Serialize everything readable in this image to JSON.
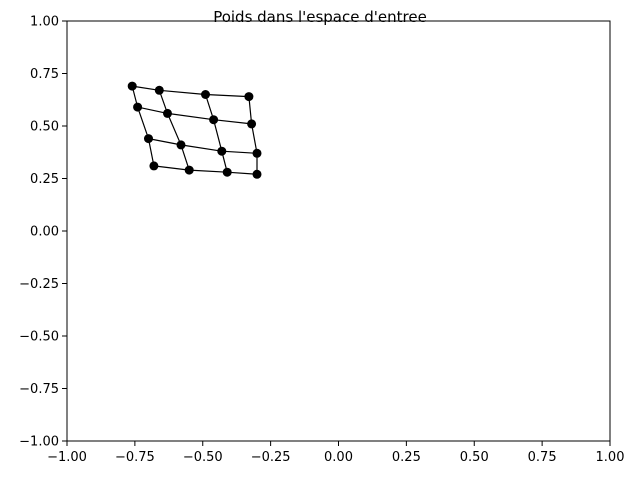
{
  "chart_data": {
    "type": "scatter",
    "title": "Poids dans l'espace d'entree",
    "xlabel": "",
    "ylabel": "",
    "xlim": [
      -1.0,
      1.0
    ],
    "ylim": [
      -1.0,
      1.0
    ],
    "grid": false,
    "x_tick_values": [
      -1.0,
      -0.75,
      -0.5,
      -0.25,
      0.0,
      0.25,
      0.5,
      0.75,
      1.0
    ],
    "x_tick_labels": [
      "−1.00",
      "−0.75",
      "−0.50",
      "−0.25",
      "0.00",
      "0.25",
      "0.50",
      "0.75",
      "1.00"
    ],
    "y_tick_values": [
      -1.0,
      -0.75,
      -0.5,
      -0.25,
      0.0,
      0.25,
      0.5,
      0.75,
      1.0
    ],
    "y_tick_labels": [
      "−1.00",
      "−0.75",
      "−0.50",
      "−0.25",
      "0.00",
      "0.25",
      "0.50",
      "0.75",
      "1.00"
    ],
    "marker_color": "#000000",
    "line_color": "#000000",
    "grid_nodes": [
      [
        [
          -0.76,
          0.69
        ],
        [
          -0.66,
          0.67
        ],
        [
          -0.49,
          0.65
        ],
        [
          -0.33,
          0.64
        ]
      ],
      [
        [
          -0.74,
          0.59
        ],
        [
          -0.63,
          0.56
        ],
        [
          -0.46,
          0.53
        ],
        [
          -0.32,
          0.51
        ]
      ],
      [
        [
          -0.7,
          0.44
        ],
        [
          -0.58,
          0.41
        ],
        [
          -0.43,
          0.38
        ],
        [
          -0.3,
          0.37
        ]
      ],
      [
        [
          -0.68,
          0.31
        ],
        [
          -0.55,
          0.29
        ],
        [
          -0.41,
          0.28
        ],
        [
          -0.3,
          0.27
        ]
      ]
    ]
  }
}
